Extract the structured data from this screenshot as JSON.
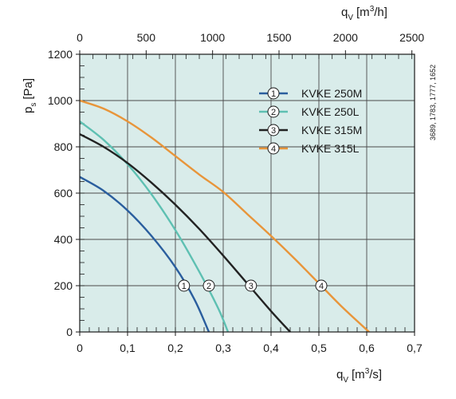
{
  "chart_data": {
    "type": "line",
    "x_bottom": {
      "label_main": "q",
      "label_sub": "V",
      "label_unit_pre": "[m",
      "label_unit_sup": "3",
      "label_unit_post": "/s]",
      "range": [
        0,
        0.7
      ],
      "ticks": [
        0,
        0.1,
        0.2,
        0.3,
        0.4,
        0.5,
        0.6,
        0.7
      ],
      "tick_labels": [
        "0",
        "0,1",
        "0,2",
        "0,3",
        "0,4",
        "0,5",
        "0,6",
        "0,7"
      ]
    },
    "x_top": {
      "label_main": "q",
      "label_sub": "V",
      "label_unit_pre": "[m",
      "label_unit_sup": "3",
      "label_unit_post": "/h]",
      "range": [
        0,
        2520
      ],
      "ticks": [
        0,
        500,
        1000,
        1500,
        2000,
        2500
      ],
      "tick_labels": [
        "0",
        "500",
        "1000",
        "1500",
        "2000",
        "2500"
      ]
    },
    "y": {
      "label_main": "p",
      "label_sub": "s",
      "label_unit": "[Pa]",
      "range": [
        0,
        1200
      ],
      "ticks": [
        0,
        200,
        400,
        600,
        800,
        1000,
        1200
      ],
      "tick_labels": [
        "0",
        "200",
        "400",
        "600",
        "800",
        "1000",
        "1200"
      ]
    },
    "grid": true,
    "legend_position": "top-right",
    "side_note": "3689, 1783, 1777, 1652",
    "series": [
      {
        "name": "KVKE 250M",
        "marker": "1",
        "color": "#2a5e9e",
        "marker_at": [
          0.218,
          200
        ],
        "points": [
          [
            0,
            670
          ],
          [
            0.05,
            610
          ],
          [
            0.1,
            525
          ],
          [
            0.15,
            415
          ],
          [
            0.2,
            280
          ],
          [
            0.24,
            140
          ],
          [
            0.27,
            0
          ]
        ]
      },
      {
        "name": "KVKE 250L",
        "marker": "2",
        "color": "#5ec0b2",
        "marker_at": [
          0.27,
          200
        ],
        "points": [
          [
            0,
            910
          ],
          [
            0.05,
            830
          ],
          [
            0.1,
            725
          ],
          [
            0.15,
            595
          ],
          [
            0.2,
            440
          ],
          [
            0.25,
            260
          ],
          [
            0.29,
            100
          ],
          [
            0.31,
            0
          ]
        ]
      },
      {
        "name": "KVKE 315M",
        "marker": "3",
        "color": "#222222",
        "marker_at": [
          0.358,
          200
        ],
        "points": [
          [
            0,
            855
          ],
          [
            0.05,
            800
          ],
          [
            0.1,
            730
          ],
          [
            0.15,
            645
          ],
          [
            0.2,
            550
          ],
          [
            0.25,
            445
          ],
          [
            0.3,
            330
          ],
          [
            0.35,
            210
          ],
          [
            0.4,
            90
          ],
          [
            0.44,
            0
          ]
        ]
      },
      {
        "name": "KVKE 315L",
        "marker": "4",
        "color": "#e8953a",
        "marker_at": [
          0.505,
          200
        ],
        "points": [
          [
            0,
            1000
          ],
          [
            0.05,
            965
          ],
          [
            0.1,
            910
          ],
          [
            0.15,
            840
          ],
          [
            0.2,
            760
          ],
          [
            0.25,
            680
          ],
          [
            0.3,
            605
          ],
          [
            0.35,
            510
          ],
          [
            0.4,
            415
          ],
          [
            0.45,
            315
          ],
          [
            0.5,
            210
          ],
          [
            0.55,
            105
          ],
          [
            0.605,
            0
          ]
        ]
      }
    ]
  }
}
